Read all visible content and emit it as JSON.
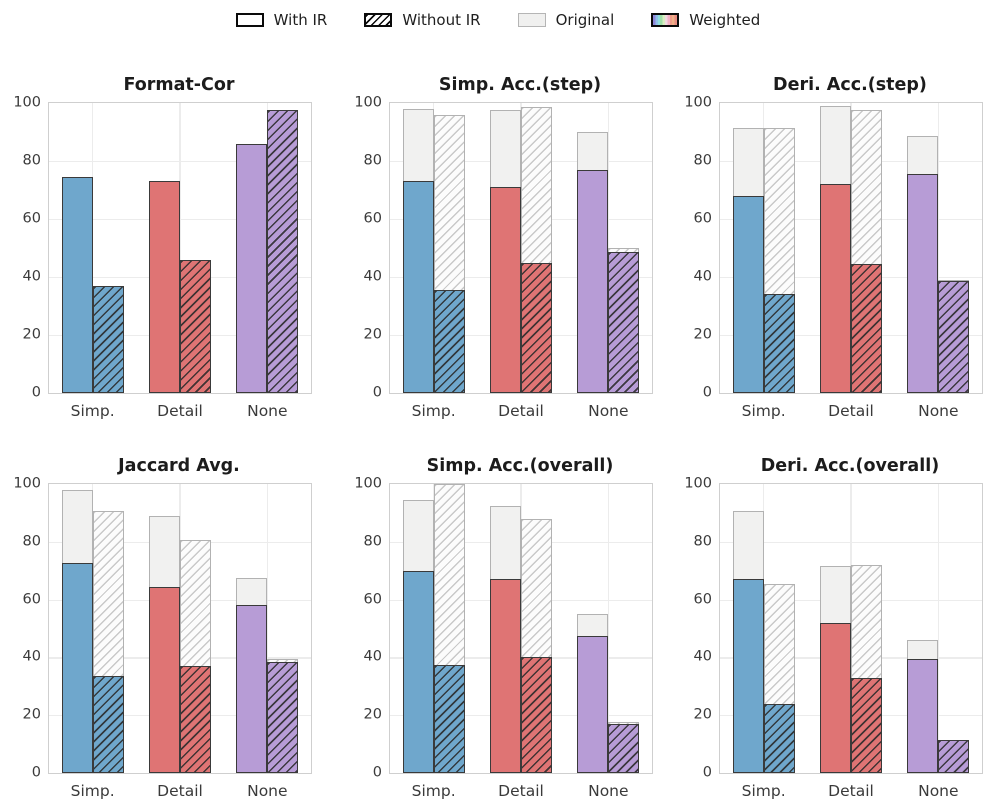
{
  "legend": {
    "items": [
      {
        "label": "With IR",
        "swatch": "with-ir-swatch"
      },
      {
        "label": "Without IR",
        "swatch": "without-ir-swatch"
      },
      {
        "label": "Original",
        "swatch": "original-swatch"
      },
      {
        "label": "Weighted",
        "swatch": "weighted-swatch"
      }
    ]
  },
  "palette": {
    "category_colors": [
      "#6fa7cc",
      "#df7474",
      "#b79cd6"
    ],
    "original_fill": "#f1f1f0",
    "original_edge": "#b2b2b2",
    "weighted_edge": "#3a3a3a",
    "gridline": "#ececec"
  },
  "chart_data": [
    {
      "type": "bar",
      "title": "Format-Cor",
      "categories": [
        "Simp.",
        "Detail",
        "None"
      ],
      "ylim": [
        0,
        100
      ],
      "yticks": [
        0,
        20,
        40,
        60,
        80,
        100
      ],
      "grid": "both",
      "legend_position": "top-center",
      "series": {
        "original_with_ir": [
          74.5,
          73,
          86
        ],
        "original_without_ir": [
          37,
          46,
          97.5
        ],
        "weighted_with_ir": [
          74.5,
          73,
          86
        ],
        "weighted_without_ir": [
          37,
          46,
          97.5
        ]
      }
    },
    {
      "type": "bar",
      "title": "Simp. Acc.(step)",
      "categories": [
        "Simp.",
        "Detail",
        "None"
      ],
      "ylim": [
        0,
        100
      ],
      "yticks": [
        0,
        20,
        40,
        60,
        80,
        100
      ],
      "grid": "both",
      "legend_position": "top-center",
      "series": {
        "original_with_ir": [
          98,
          97.5,
          90
        ],
        "original_without_ir": [
          96,
          98.5,
          50
        ],
        "weighted_with_ir": [
          73,
          71,
          77
        ],
        "weighted_without_ir": [
          35.5,
          45,
          48.5
        ]
      }
    },
    {
      "type": "bar",
      "title": "Deri. Acc.(step)",
      "categories": [
        "Simp.",
        "Detail",
        "None"
      ],
      "ylim": [
        0,
        100
      ],
      "yticks": [
        0,
        20,
        40,
        60,
        80,
        100
      ],
      "grid": "both",
      "legend_position": "top-center",
      "series": {
        "original_with_ir": [
          91.5,
          99,
          88.5
        ],
        "original_without_ir": [
          91.5,
          97.5,
          39
        ],
        "weighted_with_ir": [
          68,
          72,
          75.5
        ],
        "weighted_without_ir": [
          34,
          44.5,
          38.5
        ]
      }
    },
    {
      "type": "bar",
      "title": "Jaccard Avg.",
      "categories": [
        "Simp.",
        "Detail",
        "None"
      ],
      "ylim": [
        0,
        100
      ],
      "yticks": [
        0,
        20,
        40,
        60,
        80,
        100
      ],
      "grid": "both",
      "legend_position": "top-center",
      "series": {
        "original_with_ir": [
          98,
          89,
          67.5
        ],
        "original_without_ir": [
          90.5,
          80.5,
          39.5
        ],
        "weighted_with_ir": [
          72.5,
          64.5,
          58
        ],
        "weighted_without_ir": [
          33.5,
          37,
          38.5
        ]
      }
    },
    {
      "type": "bar",
      "title": "Simp. Acc.(overall)",
      "categories": [
        "Simp.",
        "Detail",
        "None"
      ],
      "ylim": [
        0,
        100
      ],
      "yticks": [
        0,
        20,
        40,
        60,
        80,
        100
      ],
      "grid": "both",
      "legend_position": "top-center",
      "series": {
        "original_with_ir": [
          94.5,
          92.5,
          55
        ],
        "original_without_ir": [
          100,
          88,
          17.5
        ],
        "weighted_with_ir": [
          70,
          67,
          47.5
        ],
        "weighted_without_ir": [
          37.5,
          40,
          17
        ]
      }
    },
    {
      "type": "bar",
      "title": "Deri. Acc.(overall)",
      "categories": [
        "Simp.",
        "Detail",
        "None"
      ],
      "ylim": [
        0,
        100
      ],
      "yticks": [
        0,
        20,
        40,
        60,
        80,
        100
      ],
      "grid": "both",
      "legend_position": "top-center",
      "series": {
        "original_with_ir": [
          90.5,
          71.5,
          46
        ],
        "original_without_ir": [
          65.5,
          72,
          11.5
        ],
        "weighted_with_ir": [
          67,
          52,
          39.5
        ],
        "weighted_without_ir": [
          24,
          33,
          11.5
        ]
      }
    }
  ]
}
